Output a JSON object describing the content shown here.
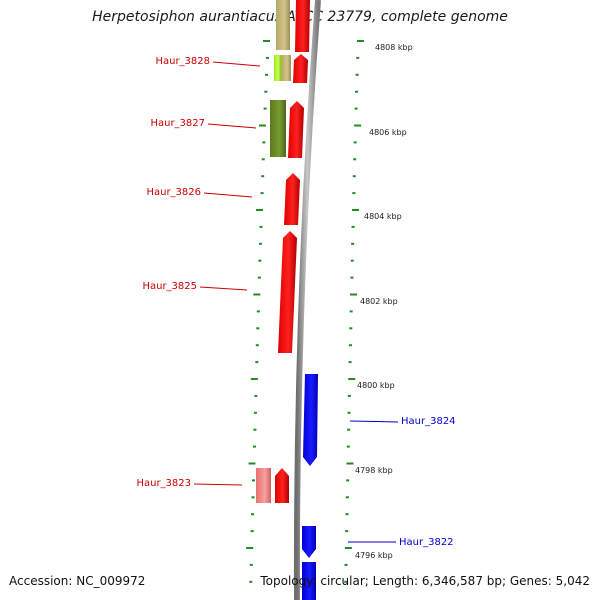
{
  "title": "Herpetosiphon aurantiacus ATCC 23779, complete genome",
  "accession": "Accession: NC_009972",
  "stats": "Topology: circular; Length: 6,346,587 bp; Genes: 5,042",
  "colors": {
    "red_gene": "#ff0000",
    "blue_gene": "#0000ff",
    "tan_gene": "#c0b070",
    "olive_gene": "#6b8e23",
    "lime_gene": "#aaff22",
    "pink_gene": "#f08080",
    "red_label": "#cc0000",
    "blue_label": "#0000cc",
    "tick": "#228b22",
    "backbone": "#8c8c8c"
  },
  "scale": {
    "unit": "kbp",
    "labels": [
      "4808 kbp",
      "4806 kbp",
      "4804 kbp",
      "4802 kbp",
      "4800 kbp",
      "4798 kbp",
      "4796 kbp"
    ]
  },
  "gene_labels": {
    "left": [
      "Haur_3828",
      "Haur_3827",
      "Haur_3826",
      "Haur_3825",
      "Haur_3823"
    ],
    "right": [
      "Haur_3824",
      "Haur_3822"
    ]
  }
}
